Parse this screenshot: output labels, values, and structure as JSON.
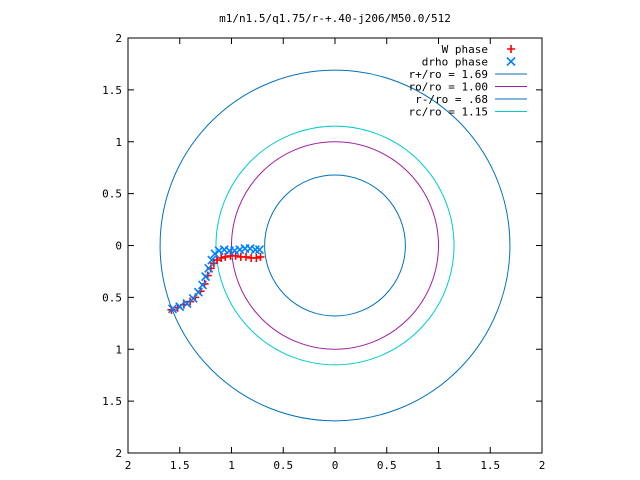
{
  "chart_data": {
    "type": "scatter",
    "title": "m1/n1.5/q1.75/r-+.40-j206/M50.0/512",
    "xlabel": "",
    "ylabel": "",
    "xlim": [
      -2,
      2
    ],
    "ylim": [
      -2,
      2
    ],
    "x_ticks": [
      {
        "value": -2,
        "label": "2"
      },
      {
        "value": -1.5,
        "label": "1.5"
      },
      {
        "value": -1,
        "label": "1"
      },
      {
        "value": -0.5,
        "label": "0.5"
      },
      {
        "value": 0,
        "label": "0"
      },
      {
        "value": 0.5,
        "label": "0.5"
      },
      {
        "value": 1,
        "label": "1"
      },
      {
        "value": 1.5,
        "label": "1.5"
      },
      {
        "value": 2,
        "label": "2"
      }
    ],
    "y_ticks": [
      {
        "value": 2,
        "label": "2"
      },
      {
        "value": 1.5,
        "label": "1.5"
      },
      {
        "value": 1,
        "label": "1"
      },
      {
        "value": 0.5,
        "label": "0.5"
      },
      {
        "value": 0,
        "label": "0"
      },
      {
        "value": -0.5,
        "label": "0.5"
      },
      {
        "value": -1,
        "label": "1"
      },
      {
        "value": -1.5,
        "label": "1.5"
      },
      {
        "value": -2,
        "label": "2"
      }
    ],
    "grid": false,
    "legend_position": "top-right",
    "series": [
      {
        "name": "W phase",
        "kind": "points",
        "marker": "plus",
        "color": "#ff0000",
        "x": [
          -1.58,
          -1.52,
          -1.46,
          -1.4,
          -1.35,
          -1.3,
          -1.26,
          -1.23,
          -1.2,
          -1.17,
          -1.14,
          -1.1,
          -1.06,
          -1.01,
          -0.96,
          -0.91,
          -0.86,
          -0.81,
          -0.76,
          -0.72
        ],
        "y": [
          -0.62,
          -0.6,
          -0.57,
          -0.54,
          -0.5,
          -0.44,
          -0.37,
          -0.29,
          -0.22,
          -0.17,
          -0.14,
          -0.12,
          -0.11,
          -0.1,
          -0.1,
          -0.11,
          -0.11,
          -0.12,
          -0.12,
          -0.11
        ]
      },
      {
        "name": "drho phase",
        "kind": "points",
        "marker": "x",
        "color": "#0080ff",
        "x": [
          -1.57,
          -1.5,
          -1.43,
          -1.37,
          -1.32,
          -1.28,
          -1.25,
          -1.22,
          -1.19,
          -1.16,
          -1.12,
          -1.07,
          -1.02,
          -0.97,
          -0.92,
          -0.87,
          -0.82,
          -0.77,
          -0.73
        ],
        "y": [
          -0.61,
          -0.59,
          -0.56,
          -0.51,
          -0.45,
          -0.38,
          -0.3,
          -0.22,
          -0.14,
          -0.08,
          -0.05,
          -0.04,
          -0.05,
          -0.05,
          -0.04,
          -0.03,
          -0.03,
          -0.04,
          -0.04
        ]
      },
      {
        "name": "r+/ro = 1.69",
        "kind": "circle",
        "radius": 1.69,
        "color": "#0072bd"
      },
      {
        "name": "ro/ro = 1.00",
        "kind": "circle",
        "radius": 1.0,
        "color": "#a020a0"
      },
      {
        "name": "r-/ro = .68",
        "kind": "circle",
        "radius": 0.68,
        "color": "#0072bd"
      },
      {
        "name": "rc/ro = 1.15",
        "kind": "circle",
        "radius": 1.15,
        "color": "#00cccc"
      }
    ]
  }
}
